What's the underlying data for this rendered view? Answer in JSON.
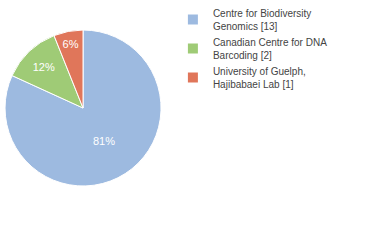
{
  "chart_data": {
    "type": "pie",
    "categories": [
      "Centre for Biodiversity Genomics [13]",
      "Canadian Centre for DNA Barcoding [2]",
      "University of Guelph, Hajibabaei Lab [1]"
    ],
    "values": [
      81,
      12,
      6
    ],
    "value_labels": [
      "81%",
      "12%",
      "6%"
    ],
    "colors": [
      "#9dbae0",
      "#9fcb76",
      "#e0765a"
    ],
    "data_labels": true,
    "legend": "right"
  }
}
